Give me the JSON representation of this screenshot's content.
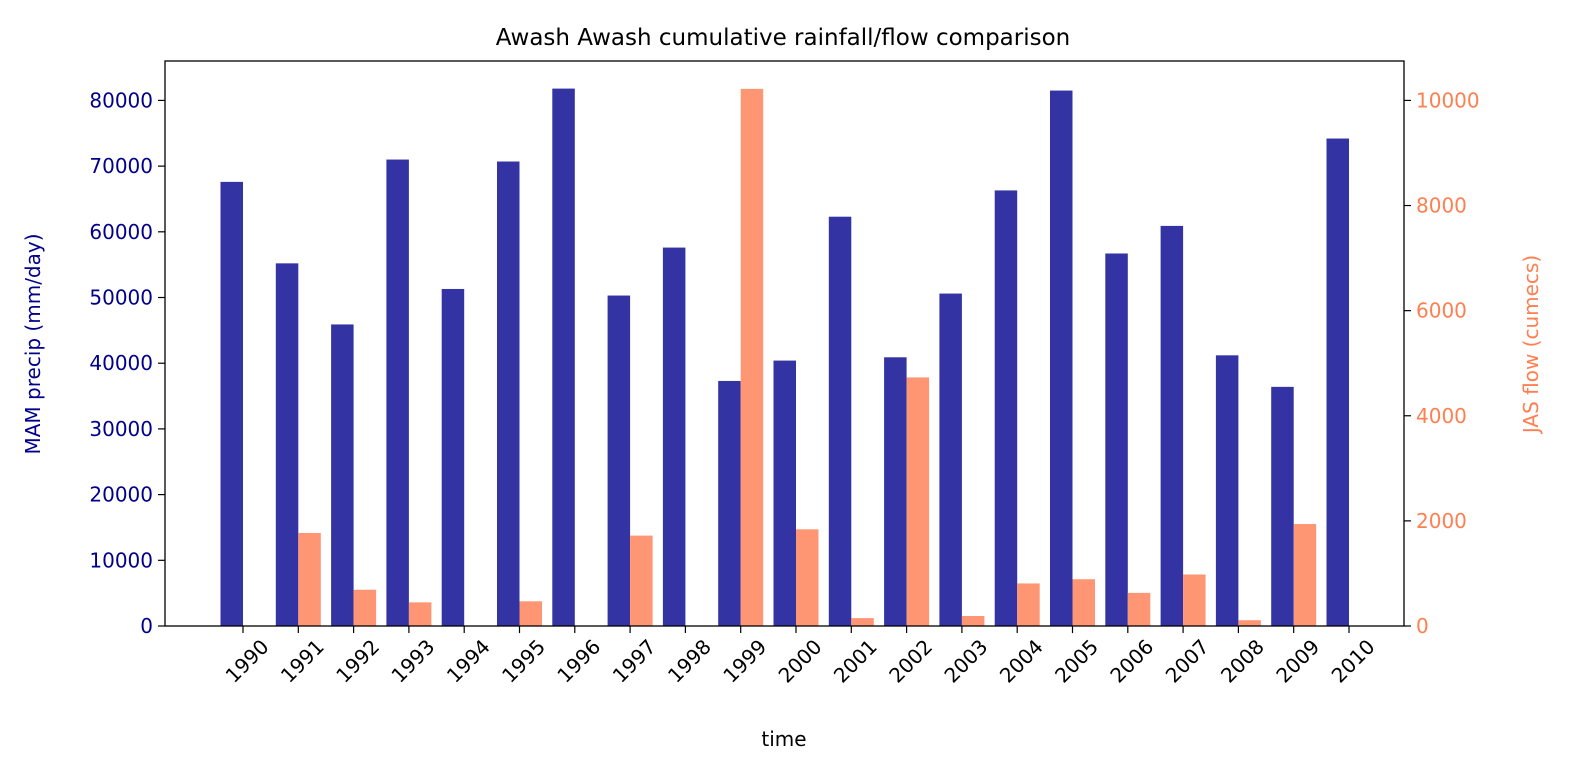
{
  "chart_data": {
    "type": "bar",
    "title": "Awash Awash cumulative rainfall/flow comparison",
    "xlabel": "time",
    "ylabel_left": "MAM precip (mm/day)",
    "ylabel_right": "JAS flow (cumecs)",
    "categories": [
      "1990",
      "1991",
      "1992",
      "1993",
      "1994",
      "1995",
      "1996",
      "1997",
      "1998",
      "1999",
      "2000",
      "2001",
      "2002",
      "2003",
      "2004",
      "2005",
      "2006",
      "2007",
      "2008",
      "2009",
      "2010"
    ],
    "ylim_left": [
      0,
      86000
    ],
    "ylim_right": [
      0,
      10750
    ],
    "yticks_left": [
      0,
      10000,
      20000,
      30000,
      40000,
      50000,
      60000,
      70000,
      80000
    ],
    "yticks_right": [
      0,
      2000,
      4000,
      6000,
      8000,
      10000
    ],
    "grid": false,
    "series": [
      {
        "name": "MAM precip (mm/day)",
        "axis": "left",
        "color": "#3333a3",
        "values": [
          67600,
          55200,
          45900,
          71000,
          51300,
          70700,
          81800,
          50300,
          57600,
          37300,
          40400,
          62300,
          40900,
          50600,
          66300,
          81500,
          56700,
          60900,
          41200,
          36400,
          74200
        ]
      },
      {
        "name": "JAS flow (cumecs)",
        "axis": "right",
        "color": "#ff9673",
        "values": [
          0,
          1770,
          690,
          450,
          0,
          470,
          0,
          1720,
          0,
          10220,
          1840,
          150,
          4730,
          190,
          810,
          890,
          630,
          980,
          110,
          1940,
          0
        ]
      }
    ],
    "left_axis_color": "#00008b",
    "right_axis_color": "#ff7f50"
  }
}
